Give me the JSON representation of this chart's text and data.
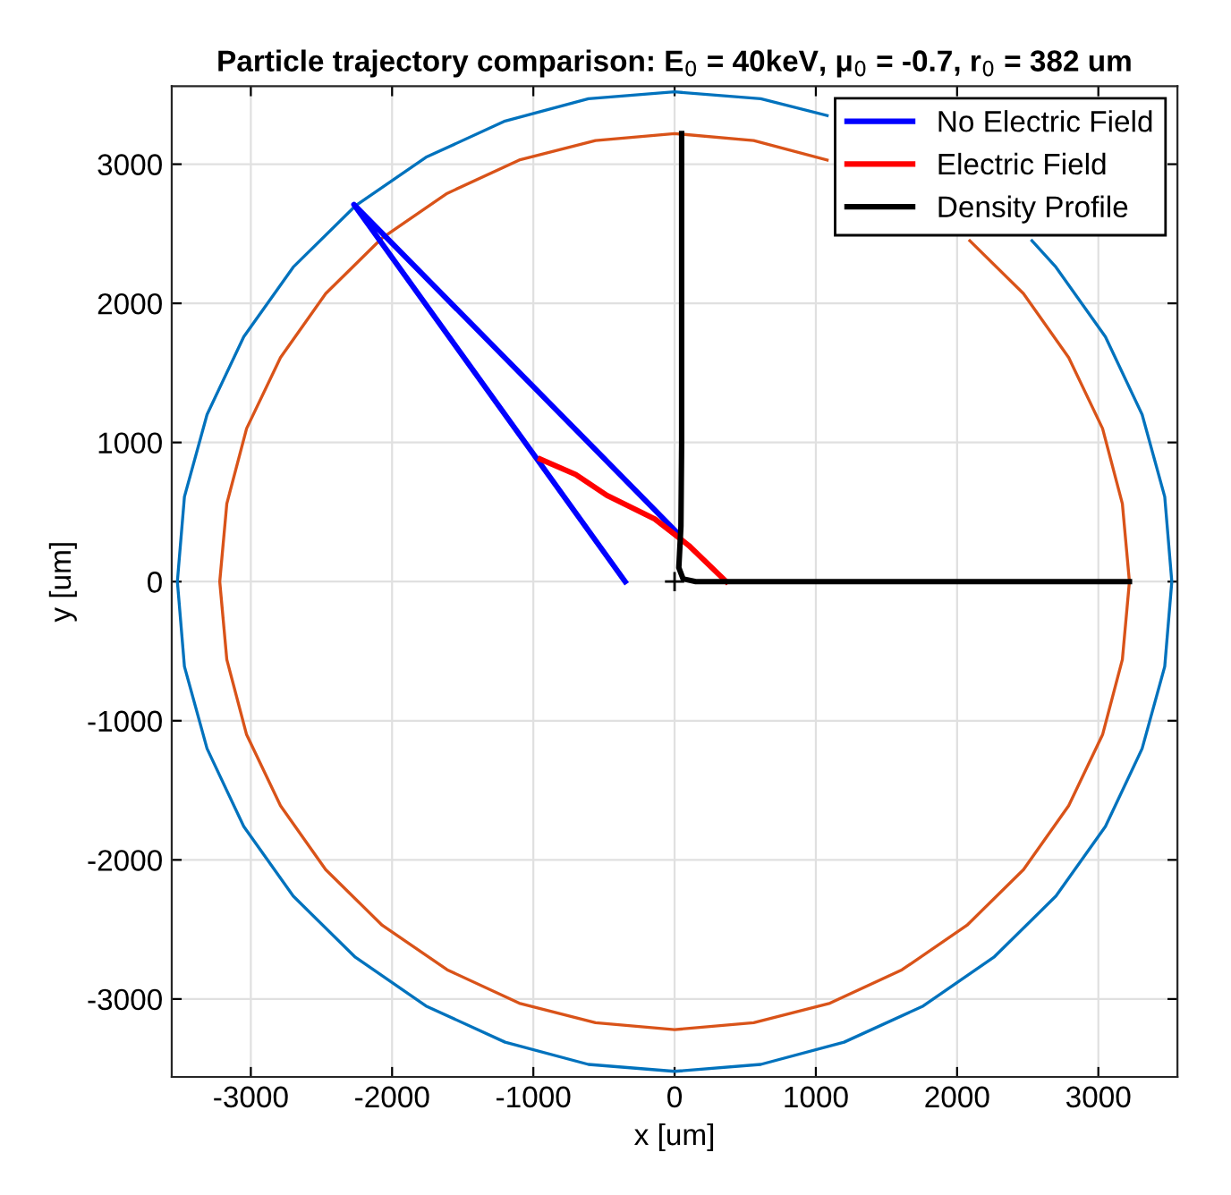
{
  "chart_data": {
    "type": "line",
    "title": "Particle trajectory comparison: E$_{0}$ = 40keV, μ$_{0}$ = -0.7, r$_{0}$ = 382 um",
    "xlabel": "x [um]",
    "ylabel": "y [um]",
    "xlim": [
      -3560,
      3560
    ],
    "ylim": [
      -3560,
      3560
    ],
    "xticks": [
      -3000,
      -2000,
      -1000,
      0,
      1000,
      2000,
      3000
    ],
    "yticks": [
      -3000,
      -2000,
      -1000,
      0,
      1000,
      2000,
      3000
    ],
    "grid": true,
    "legend": "top right",
    "series": [
      {
        "color": "#0072bd",
        "x": [
          3520,
          3470,
          3310,
          3050,
          2700,
          2530,
          null,
          1080,
          610,
          0,
          -610,
          -1200,
          -1760,
          -2260,
          -2700,
          -3050,
          -3310,
          -3470,
          -3520,
          -3470,
          -3310,
          -3050,
          -2700,
          -2260,
          -1760,
          -1200,
          -610,
          0,
          610,
          1200,
          1760,
          2260,
          2700,
          3050,
          3310,
          3470,
          3520
        ],
        "values": [
          0,
          610,
          1200,
          1760,
          2260,
          2450,
          null,
          3350,
          3470,
          3520,
          3470,
          3310,
          3050,
          2700,
          2260,
          1760,
          1200,
          610,
          0,
          -610,
          -1200,
          -1760,
          -2260,
          -2700,
          -3050,
          -3310,
          -3470,
          -3520,
          -3470,
          -3310,
          -3050,
          -2700,
          -2260,
          -1760,
          -1200,
          -610,
          0
        ]
      },
      {
        "color": "#d95319",
        "x": [
          3220,
          3170,
          3030,
          2790,
          2470,
          2090,
          null,
          1080,
          560,
          0,
          -560,
          -1100,
          -1610,
          -2070,
          -2470,
          -2790,
          -3030,
          -3170,
          -3220,
          -3170,
          -3030,
          -2790,
          -2470,
          -2070,
          -1610,
          -1100,
          -560,
          0,
          560,
          1100,
          1610,
          2070,
          2470,
          2790,
          3030,
          3170,
          3220
        ],
        "values": [
          0,
          560,
          1100,
          1610,
          2070,
          2450,
          null,
          3030,
          3170,
          3220,
          3170,
          3030,
          2790,
          2470,
          2070,
          1610,
          1100,
          560,
          0,
          -560,
          -1100,
          -1610,
          -2070,
          -2470,
          -2790,
          -3030,
          -3170,
          -3220,
          -3170,
          -3030,
          -2790,
          -2470,
          -2070,
          -1610,
          -1100,
          -560,
          0
        ]
      },
      {
        "name": "No Electric Field",
        "color": "#0000ff",
        "x": [
          -350,
          -2270,
          30
        ],
        "values": [
          0,
          2710,
          340
        ]
      },
      {
        "name": "Electric Field",
        "color": "#ff0000",
        "x": [
          -950,
          -700,
          -480,
          -140,
          100,
          366
        ],
        "values": [
          880,
          770,
          620,
          450,
          260,
          0
        ]
      },
      {
        "name": "Density Profile",
        "color": "#000000",
        "x": [
          50,
          50,
          45,
          35,
          30,
          60,
          150,
          400,
          3220
        ],
        "values": [
          3220,
          1000,
          400,
          200,
          100,
          20,
          0,
          0,
          0
        ]
      },
      {
        "type": "scatter",
        "color": "#000000",
        "marker": "cross",
        "x": [
          0
        ],
        "values": [
          0
        ]
      }
    ]
  }
}
